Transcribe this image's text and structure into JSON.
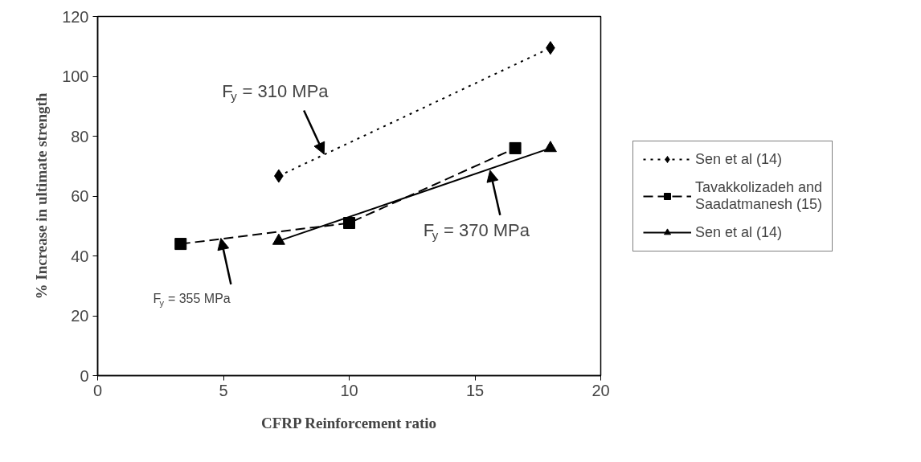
{
  "chart_data": {
    "type": "line",
    "xlabel": "CFRP Reinforcement ratio",
    "ylabel": "% Increase in ultimate strength",
    "xlim": [
      0,
      20
    ],
    "xticks": [
      0,
      5,
      10,
      15,
      20
    ],
    "ylim": [
      0,
      120
    ],
    "yticks": [
      0,
      20,
      40,
      60,
      80,
      100,
      120
    ],
    "grid": false,
    "legend": "right",
    "series": [
      {
        "name": "Sen et al (14)",
        "color": "#000000",
        "marker": "diamond",
        "line_style": "dotted",
        "x": [
          7.2,
          18
        ],
        "values": [
          66.7,
          109.5
        ]
      },
      {
        "name": "Tavakkolizadeh and Saadatmanesh (15)",
        "color": "#000000",
        "marker": "square",
        "line_style": "dashed",
        "x": [
          3.3,
          10,
          16.6
        ],
        "values": [
          44,
          51,
          76
        ]
      },
      {
        "name": "Sen et al (14)",
        "color": "#000000",
        "marker": "triangle",
        "line_style": "solid",
        "x": [
          7.2,
          18
        ],
        "values": [
          45,
          76
        ]
      }
    ],
    "annotations": [
      {
        "text": "F$_{y}$ = 310 MPa",
        "x": 9.0,
        "y": 74
      },
      {
        "text": "F$_{y}$ = 370 MPa",
        "x": 15.6,
        "y": 68.6
      },
      {
        "text": "F$_{y}$ = 355 MPa",
        "x": 4.9,
        "y": 45.9
      }
    ]
  }
}
